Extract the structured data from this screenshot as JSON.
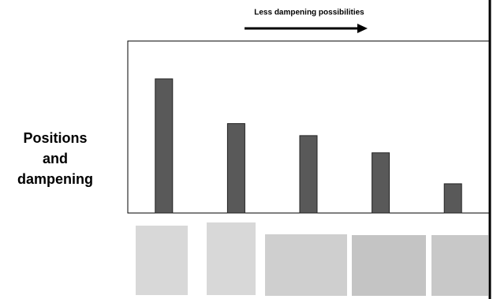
{
  "chart_data": {
    "type": "bar",
    "annotation": "Less dampening possibilities",
    "y_label": "Positions and dampening",
    "categories": [
      null,
      null,
      null,
      null,
      null
    ],
    "values": [
      78,
      52,
      45,
      35,
      17
    ],
    "color": "#595959",
    "ylim": [
      0,
      100
    ]
  }
}
